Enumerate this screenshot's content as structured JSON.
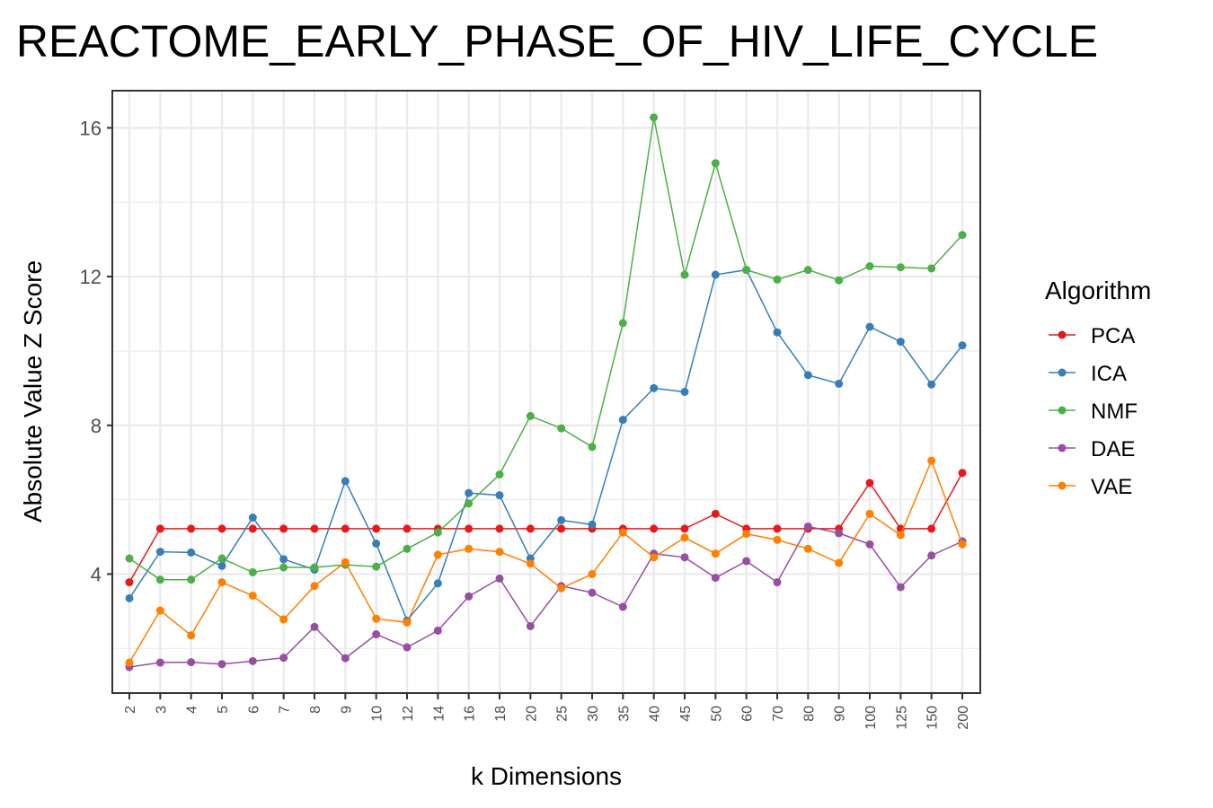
{
  "chart_data": {
    "type": "line",
    "title": "REACTOME_EARLY_PHASE_OF_HIV_LIFE_CYCLE",
    "xlabel": "k Dimensions",
    "ylabel": "Absolute Value Z Score",
    "categories": [
      "2",
      "3",
      "4",
      "5",
      "6",
      "7",
      "8",
      "9",
      "10",
      "12",
      "14",
      "16",
      "18",
      "20",
      "25",
      "30",
      "35",
      "40",
      "45",
      "50",
      "60",
      "70",
      "80",
      "90",
      "100",
      "125",
      "150",
      "200"
    ],
    "ylim": [
      0.8,
      17
    ],
    "yticks": [
      4,
      8,
      12,
      16
    ],
    "grid": true,
    "legend": {
      "title": "Algorithm",
      "position": "right"
    },
    "series": [
      {
        "name": "PCA",
        "color": "#e41a1c",
        "values": [
          3.78,
          5.22,
          5.22,
          5.22,
          5.22,
          5.22,
          5.22,
          5.22,
          5.22,
          5.22,
          5.22,
          5.22,
          5.22,
          5.22,
          5.22,
          5.22,
          5.22,
          5.22,
          5.22,
          5.62,
          5.22,
          5.22,
          5.22,
          5.22,
          6.45,
          5.22,
          5.22,
          6.72
        ]
      },
      {
        "name": "ICA",
        "color": "#377eb8",
        "values": [
          3.35,
          4.6,
          4.58,
          4.22,
          5.52,
          4.4,
          4.12,
          6.5,
          4.82,
          2.75,
          3.75,
          6.18,
          6.12,
          4.42,
          5.45,
          5.33,
          8.15,
          9.0,
          8.9,
          12.05,
          12.18,
          10.5,
          9.35,
          9.12,
          10.65,
          10.25,
          9.1,
          10.15
        ]
      },
      {
        "name": "NMF",
        "color": "#4daf4a",
        "values": [
          4.42,
          3.85,
          3.85,
          4.42,
          4.05,
          4.18,
          4.18,
          4.25,
          4.2,
          4.68,
          5.12,
          5.9,
          6.68,
          8.25,
          7.92,
          7.42,
          10.75,
          16.28,
          12.05,
          15.05,
          12.18,
          11.92,
          12.18,
          11.9,
          12.28,
          12.25,
          12.22,
          13.12
        ]
      },
      {
        "name": "DAE",
        "color": "#984ea3",
        "values": [
          1.5,
          1.62,
          1.63,
          1.58,
          1.66,
          1.75,
          2.58,
          1.74,
          2.38,
          2.03,
          2.48,
          3.4,
          3.88,
          2.6,
          3.68,
          3.5,
          3.12,
          4.55,
          4.45,
          3.9,
          4.35,
          3.78,
          5.28,
          5.1,
          4.8,
          3.65,
          4.5,
          4.88
        ]
      },
      {
        "name": "VAE",
        "color": "#ff7f00",
        "values": [
          1.62,
          3.02,
          2.35,
          3.78,
          3.42,
          2.78,
          3.68,
          4.32,
          2.8,
          2.7,
          4.52,
          4.68,
          4.6,
          4.28,
          3.62,
          4.0,
          5.12,
          4.45,
          4.98,
          4.55,
          5.08,
          4.92,
          4.68,
          4.3,
          5.62,
          5.05,
          7.05,
          4.8
        ]
      }
    ]
  }
}
